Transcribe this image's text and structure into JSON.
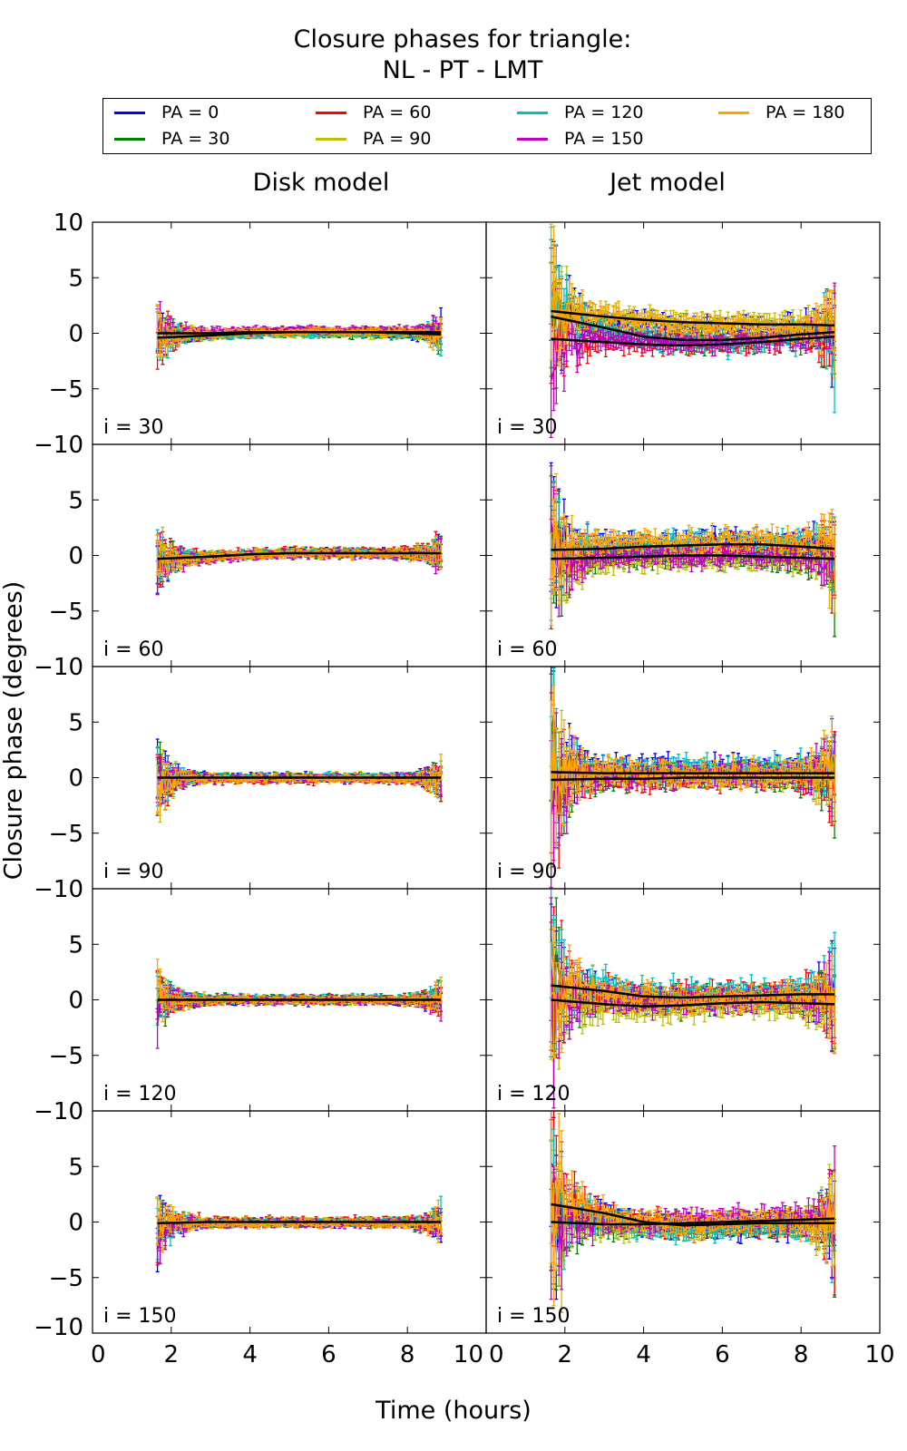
{
  "chart_data": {
    "type": "line",
    "title": "Closure phases for triangle:",
    "subtitle": "NL - PT - LMT",
    "xlabel": "Time (hours)",
    "ylabel": "Closure phase (degrees)",
    "xlim": [
      0,
      10
    ],
    "ylim": [
      -10,
      10
    ],
    "xticks": [
      "0",
      "2",
      "4",
      "6",
      "8",
      "10"
    ],
    "yticks": [
      "−10",
      "−5",
      "0",
      "5",
      "10"
    ],
    "grid": false,
    "legend_placement": "top",
    "column_titles": [
      "Disk model",
      "Jet model"
    ],
    "series": [
      {
        "name": "PA = 0",
        "color": "#0000ff"
      },
      {
        "name": "PA = 30",
        "color": "#008000"
      },
      {
        "name": "PA = 60",
        "color": "#ff0000"
      },
      {
        "name": "PA = 90",
        "color": "#bfbf00"
      },
      {
        "name": "PA = 120",
        "color": "#00bfbf"
      },
      {
        "name": "PA = 150",
        "color": "#bf00bf"
      },
      {
        "name": "PA = 180",
        "color": "#ffa500"
      }
    ],
    "time_range": [
      1.65,
      8.85
    ],
    "trend_x": [
      1.65,
      3,
      4,
      5,
      6,
      7,
      8,
      8.85
    ],
    "panels": [
      {
        "model": "Disk",
        "label": "i = 30",
        "scatter": 0.35,
        "edge_scatter": 1.5,
        "trends": [
          [
            -0.4,
            -0.2,
            0,
            0.1,
            0.1,
            0.1,
            0,
            -0.1
          ],
          [
            0,
            0,
            0.1,
            0.1,
            0.1,
            0.1,
            0.1,
            0.1
          ]
        ]
      },
      {
        "model": "Jet",
        "label": "i = 30",
        "scatter": 1.0,
        "edge_scatter": 4,
        "trends": [
          [
            2,
            1.5,
            1.2,
            1.0,
            0.9,
            0.8,
            0.8,
            0.7
          ],
          [
            1.5,
            0.5,
            -0.3,
            -0.6,
            -0.6,
            -0.4,
            -0.1,
            0.1
          ],
          [
            -0.5,
            -0.8,
            -1.0,
            -1.1,
            -1.0,
            -0.8,
            -0.5,
            -0.3
          ]
        ]
      },
      {
        "model": "Disk",
        "label": "i = 60",
        "scatter": 0.35,
        "edge_scatter": 1.5,
        "trends": [
          [
            -0.3,
            -0.1,
            0.1,
            0.2,
            0.2,
            0.2,
            0.2,
            0.2
          ]
        ]
      },
      {
        "model": "Jet",
        "label": "i = 60",
        "scatter": 1.0,
        "edge_scatter": 4,
        "trends": [
          [
            0.5,
            0.6,
            0.8,
            0.9,
            1.0,
            1.0,
            0.8,
            0.6
          ],
          [
            -0.3,
            -0.2,
            -0.1,
            0,
            0,
            -0.1,
            -0.2,
            -0.3
          ]
        ]
      },
      {
        "model": "Disk",
        "label": "i = 90",
        "scatter": 0.35,
        "edge_scatter": 1.8,
        "trends": [
          [
            0,
            0,
            0,
            0,
            0,
            0,
            0,
            0
          ]
        ]
      },
      {
        "model": "Jet",
        "label": "i = 90",
        "scatter": 1.1,
        "edge_scatter": 5,
        "trends": [
          [
            0.5,
            0.4,
            0.4,
            0.4,
            0.4,
            0.4,
            0.4,
            0.4
          ],
          [
            -0.2,
            -0.1,
            -0.1,
            0,
            0,
            0,
            0,
            0
          ]
        ]
      },
      {
        "model": "Disk",
        "label": "i = 120",
        "scatter": 0.35,
        "edge_scatter": 1.5,
        "trends": [
          [
            0,
            0,
            0,
            0,
            0,
            0,
            0,
            0
          ]
        ]
      },
      {
        "model": "Jet",
        "label": "i = 120",
        "scatter": 1.1,
        "edge_scatter": 5,
        "trends": [
          [
            1.3,
            0.8,
            0.3,
            0.2,
            0.3,
            0.4,
            0.5,
            0.5
          ],
          [
            0,
            -0.4,
            -0.6,
            -0.5,
            -0.3,
            -0.2,
            -0.3,
            -0.4
          ]
        ]
      },
      {
        "model": "Disk",
        "label": "i = 150",
        "scatter": 0.35,
        "edge_scatter": 1.5,
        "trends": [
          [
            -0.1,
            0,
            0,
            0,
            0,
            0,
            0,
            0
          ]
        ]
      },
      {
        "model": "Jet",
        "label": "i = 150",
        "scatter": 1.0,
        "edge_scatter": 5,
        "trends": [
          [
            1.6,
            0.8,
            0,
            -0.3,
            -0.2,
            -0.1,
            -0.1,
            -0.1
          ],
          [
            0,
            -0.2,
            -0.2,
            -0.1,
            0,
            0.1,
            0.2,
            0.3
          ]
        ]
      }
    ]
  }
}
